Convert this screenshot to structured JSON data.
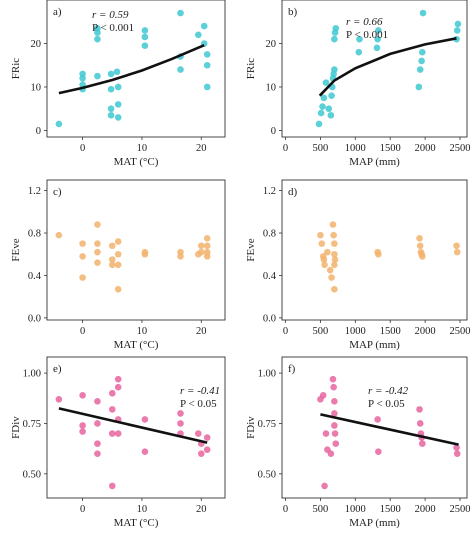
{
  "colors": {
    "cyan": "#3ec8d2",
    "orange": "#f2b36d",
    "pink": "#e8639f",
    "fit": "#111111"
  },
  "chart_data": [
    {
      "type": "scatter",
      "panel": "a)",
      "xlabel": "MAT (°C)",
      "ylabel": "FRic",
      "xlim": [
        -6,
        24
      ],
      "ylim": [
        -1.5,
        30
      ],
      "xticks": [
        "0",
        "10",
        "20"
      ],
      "yticks": [
        "0",
        "10",
        "20"
      ],
      "stats": {
        "r": "r = 0.59",
        "p": "P < 0.001"
      },
      "color": "cyan",
      "points": [
        [
          -4,
          1.5
        ],
        [
          0,
          9.5
        ],
        [
          0,
          10.5
        ],
        [
          0,
          12
        ],
        [
          0,
          13
        ],
        [
          2.5,
          12.5
        ],
        [
          2.5,
          21
        ],
        [
          2.5,
          22.5
        ],
        [
          2.5,
          23.5
        ],
        [
          4.8,
          13
        ],
        [
          4.8,
          9.5
        ],
        [
          4.8,
          5
        ],
        [
          4.8,
          3.5
        ],
        [
          5.8,
          13.5
        ],
        [
          6,
          10
        ],
        [
          6,
          6
        ],
        [
          6,
          3
        ],
        [
          10.5,
          19.5
        ],
        [
          10.5,
          21.5
        ],
        [
          10.5,
          23
        ],
        [
          16.5,
          14
        ],
        [
          16.5,
          17
        ],
        [
          16.5,
          27
        ],
        [
          19.5,
          22
        ],
        [
          20.5,
          24
        ],
        [
          20.5,
          20
        ],
        [
          21,
          15
        ],
        [
          21,
          17.5
        ],
        [
          21,
          10
        ]
      ],
      "fit": [
        [
          -4,
          8.6
        ],
        [
          0,
          9.8
        ],
        [
          5,
          11.6
        ],
        [
          10,
          13.8
        ],
        [
          15,
          16.4
        ],
        [
          20.5,
          19.6
        ]
      ]
    },
    {
      "type": "scatter",
      "panel": "b)",
      "xlabel": "MAP (mm)",
      "ylabel": "FRic",
      "xlim": [
        -50,
        2600
      ],
      "ylim": [
        -1.5,
        30
      ],
      "xticks": [
        "0",
        "500",
        "1000",
        "1500",
        "2000",
        "2500"
      ],
      "yticks": [
        "0",
        "10",
        "20"
      ],
      "stats": {
        "r": "r = 0.66",
        "p": "P < 0.001"
      },
      "color": "cyan",
      "points": [
        [
          480,
          1.5
        ],
        [
          510,
          4
        ],
        [
          530,
          5.5
        ],
        [
          550,
          7.5
        ],
        [
          580,
          11
        ],
        [
          620,
          5
        ],
        [
          650,
          3.5
        ],
        [
          660,
          8
        ],
        [
          670,
          10
        ],
        [
          680,
          12
        ],
        [
          690,
          13
        ],
        [
          700,
          14
        ],
        [
          700,
          21
        ],
        [
          710,
          22.5
        ],
        [
          720,
          23.5
        ],
        [
          1050,
          18
        ],
        [
          1060,
          21
        ],
        [
          1310,
          19
        ],
        [
          1320,
          21
        ],
        [
          1330,
          23
        ],
        [
          1910,
          10
        ],
        [
          1930,
          14
        ],
        [
          1950,
          16
        ],
        [
          1960,
          18
        ],
        [
          1970,
          27
        ],
        [
          2450,
          21
        ],
        [
          2460,
          23
        ],
        [
          2470,
          24.5
        ]
      ],
      "fit": [
        [
          490,
          8
        ],
        [
          700,
          11.5
        ],
        [
          1000,
          14.3
        ],
        [
          1500,
          17.6
        ],
        [
          2000,
          19.8
        ],
        [
          2450,
          21.2
        ]
      ]
    },
    {
      "type": "scatter",
      "panel": "c)",
      "xlabel": "MAT (°C)",
      "ylabel": "FEve",
      "xlim": [
        -6,
        24
      ],
      "ylim": [
        -0.02,
        1.3
      ],
      "xticks": [
        "0",
        "10",
        "20"
      ],
      "yticks": [
        "0.0",
        "0.4",
        "0.8",
        "1.2"
      ],
      "color": "orange",
      "points": [
        [
          -4,
          0.78
        ],
        [
          0,
          0.7
        ],
        [
          0,
          0.58
        ],
        [
          0,
          0.38
        ],
        [
          2.5,
          0.88
        ],
        [
          2.5,
          0.7
        ],
        [
          2.5,
          0.62
        ],
        [
          2.5,
          0.52
        ],
        [
          5,
          0.68
        ],
        [
          5,
          0.55
        ],
        [
          5,
          0.5
        ],
        [
          6,
          0.72
        ],
        [
          6,
          0.6
        ],
        [
          6,
          0.5
        ],
        [
          6,
          0.27
        ],
        [
          10.5,
          0.62
        ],
        [
          10.5,
          0.6
        ],
        [
          16.5,
          0.62
        ],
        [
          16.5,
          0.58
        ],
        [
          19.5,
          0.6
        ],
        [
          20,
          0.68
        ],
        [
          20,
          0.62
        ],
        [
          21,
          0.75
        ],
        [
          21,
          0.68
        ],
        [
          21,
          0.62
        ],
        [
          21,
          0.58
        ]
      ]
    },
    {
      "type": "scatter",
      "panel": "d)",
      "xlabel": "MAP (mm)",
      "ylabel": "FEve",
      "xlim": [
        -50,
        2600
      ],
      "ylim": [
        -0.02,
        1.3
      ],
      "xticks": [
        "0",
        "500",
        "1000",
        "1500",
        "2000",
        "2500"
      ],
      "yticks": [
        "0.0",
        "0.4",
        "0.8",
        "1.2"
      ],
      "color": "orange",
      "points": [
        [
          500,
          0.78
        ],
        [
          520,
          0.7
        ],
        [
          540,
          0.58
        ],
        [
          550,
          0.55
        ],
        [
          560,
          0.5
        ],
        [
          600,
          0.62
        ],
        [
          640,
          0.45
        ],
        [
          660,
          0.38
        ],
        [
          680,
          0.88
        ],
        [
          690,
          0.78
        ],
        [
          700,
          0.7
        ],
        [
          700,
          0.6
        ],
        [
          710,
          0.55
        ],
        [
          700,
          0.5
        ],
        [
          700,
          0.27
        ],
        [
          1320,
          0.62
        ],
        [
          1330,
          0.6
        ],
        [
          1920,
          0.75
        ],
        [
          1930,
          0.68
        ],
        [
          1940,
          0.62
        ],
        [
          1950,
          0.6
        ],
        [
          1960,
          0.58
        ],
        [
          2450,
          0.68
        ],
        [
          2460,
          0.62
        ]
      ]
    },
    {
      "type": "scatter",
      "panel": "e)",
      "xlabel": "MAT (°C)",
      "ylabel": "FDiv",
      "xlim": [
        -6,
        24
      ],
      "ylim": [
        0.38,
        1.08
      ],
      "xticks": [
        "0",
        "10",
        "20"
      ],
      "yticks": [
        "0.50",
        "0.75",
        "1.00"
      ],
      "stats": {
        "r": "r = -0.41",
        "p": "P < 0.05"
      },
      "color": "pink",
      "points": [
        [
          -4,
          0.87
        ],
        [
          0,
          0.89
        ],
        [
          0,
          0.74
        ],
        [
          0,
          0.71
        ],
        [
          2.5,
          0.86
        ],
        [
          2.5,
          0.75
        ],
        [
          2.5,
          0.65
        ],
        [
          2.5,
          0.6
        ],
        [
          5,
          0.9
        ],
        [
          5,
          0.82
        ],
        [
          5,
          0.7
        ],
        [
          5,
          0.44
        ],
        [
          6,
          0.97
        ],
        [
          6,
          0.93
        ],
        [
          6,
          0.77
        ],
        [
          6,
          0.7
        ],
        [
          10.5,
          0.77
        ],
        [
          10.5,
          0.61
        ],
        [
          16.5,
          0.8
        ],
        [
          16.5,
          0.75
        ],
        [
          16.5,
          0.7
        ],
        [
          19.5,
          0.7
        ],
        [
          20,
          0.65
        ],
        [
          20,
          0.6
        ],
        [
          21,
          0.68
        ],
        [
          21,
          0.62
        ]
      ],
      "fit": [
        [
          -4,
          0.825
        ],
        [
          21,
          0.655
        ]
      ]
    },
    {
      "type": "scatter",
      "panel": "f)",
      "xlabel": "MAP (mm)",
      "ylabel": "FDiv",
      "xlim": [
        -50,
        2600
      ],
      "ylim": [
        0.38,
        1.08
      ],
      "xticks": [
        "0",
        "500",
        "1000",
        "1500",
        "2000",
        "2500"
      ],
      "yticks": [
        "0.50",
        "0.75",
        "1.00"
      ],
      "stats": {
        "r": "r = -0.42",
        "p": "P < 0.05"
      },
      "color": "pink",
      "points": [
        [
          500,
          0.87
        ],
        [
          540,
          0.89
        ],
        [
          560,
          0.44
        ],
        [
          580,
          0.7
        ],
        [
          600,
          0.62
        ],
        [
          650,
          0.6
        ],
        [
          680,
          0.97
        ],
        [
          690,
          0.93
        ],
        [
          700,
          0.86
        ],
        [
          700,
          0.8
        ],
        [
          700,
          0.74
        ],
        [
          710,
          0.7
        ],
        [
          720,
          0.65
        ],
        [
          1320,
          0.77
        ],
        [
          1330,
          0.61
        ],
        [
          1920,
          0.82
        ],
        [
          1930,
          0.75
        ],
        [
          1940,
          0.7
        ],
        [
          1950,
          0.68
        ],
        [
          1960,
          0.65
        ],
        [
          2450,
          0.63
        ],
        [
          2460,
          0.6
        ]
      ],
      "fit": [
        [
          500,
          0.795
        ],
        [
          2480,
          0.645
        ]
      ]
    }
  ]
}
